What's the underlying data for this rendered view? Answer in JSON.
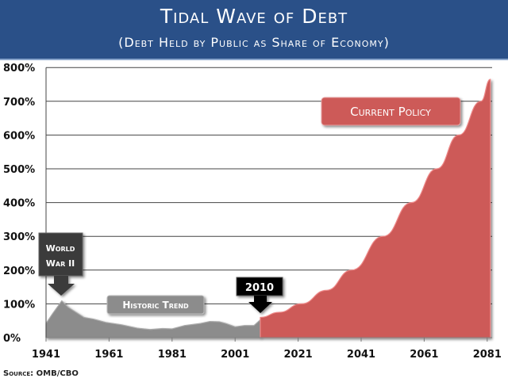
{
  "header": {
    "title": "Tidal Wave of Debt",
    "subtitle": "(Debt Held by Public as Share of Economy)"
  },
  "source": "Source: OMB/CBO",
  "colors": {
    "header": "#2a5088",
    "historic": "#8c8c8c",
    "current_policy": "#cd5a58",
    "callout_dark": "#3a3a3a",
    "callout_black": "#000000"
  },
  "chart_data": {
    "type": "area",
    "title": "Tidal Wave of Debt",
    "subtitle": "(Debt Held by Public as Share of Economy)",
    "xlabel": "",
    "ylabel": "",
    "xlim": [
      1941,
      2082
    ],
    "ylim": [
      0,
      800
    ],
    "x_ticks": [
      "1941",
      "1961",
      "1981",
      "2001",
      "2021",
      "2041",
      "2061",
      "2081"
    ],
    "y_ticks": [
      "0%",
      "100%",
      "200%",
      "300%",
      "400%",
      "500%",
      "600%",
      "700%",
      "800%"
    ],
    "grid": "horizontal",
    "series": [
      {
        "name": "Historic Trend",
        "color": "#8c8c8c",
        "points": [
          [
            1941,
            42
          ],
          [
            1943,
            70
          ],
          [
            1946,
            109
          ],
          [
            1948,
            90
          ],
          [
            1950,
            78
          ],
          [
            1953,
            60
          ],
          [
            1956,
            55
          ],
          [
            1960,
            45
          ],
          [
            1965,
            38
          ],
          [
            1970,
            28
          ],
          [
            1974,
            24
          ],
          [
            1978,
            27
          ],
          [
            1981,
            26
          ],
          [
            1985,
            36
          ],
          [
            1990,
            42
          ],
          [
            1993,
            48
          ],
          [
            1996,
            47
          ],
          [
            1998,
            42
          ],
          [
            2001,
            32
          ],
          [
            2004,
            36
          ],
          [
            2007,
            36
          ],
          [
            2009,
            53
          ]
        ]
      },
      {
        "name": "Current Policy",
        "color": "#cd5a58",
        "points": [
          [
            2009,
            60
          ],
          [
            2015,
            75
          ],
          [
            2022,
            100
          ],
          [
            2030,
            140
          ],
          [
            2038,
            200
          ],
          [
            2048,
            300
          ],
          [
            2057,
            400
          ],
          [
            2065,
            500
          ],
          [
            2072,
            600
          ],
          [
            2079,
            700
          ],
          [
            2082,
            765
          ]
        ]
      }
    ],
    "annotations": [
      {
        "text": "World War II",
        "points_to": 1946,
        "style": "dark"
      },
      {
        "text": "Historic Trend",
        "style": "gray"
      },
      {
        "text": "2010",
        "points_to": 2009,
        "style": "black"
      },
      {
        "text": "Current Policy",
        "style": "red"
      }
    ]
  }
}
